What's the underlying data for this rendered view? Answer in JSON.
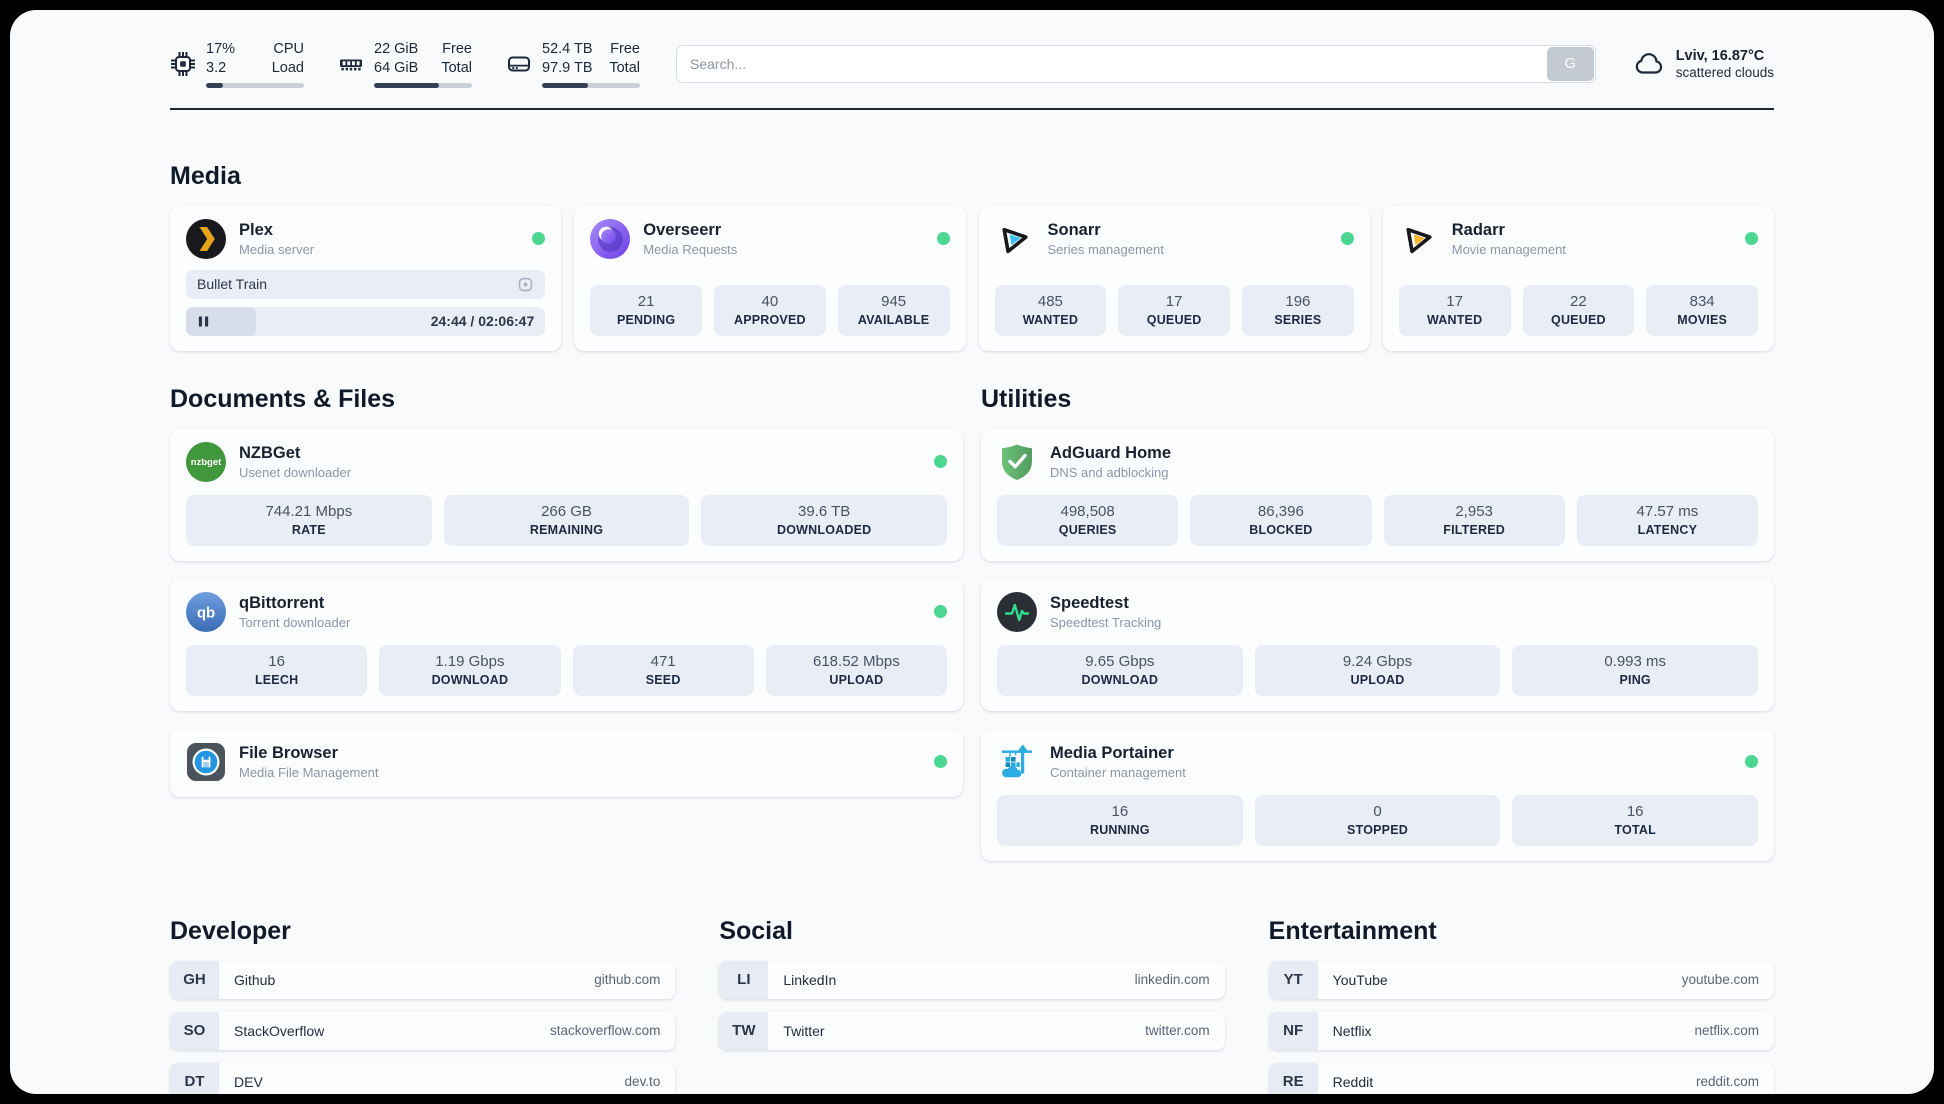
{
  "theme": {
    "accent_green": "#4cd791",
    "page_bg": "#f8fafc",
    "text_dark": "#1d2838",
    "box_bg": "#e9eef6"
  },
  "header": {
    "stats": [
      {
        "icon": "cpu-icon",
        "value_top": "17%",
        "value_bottom": "3.2",
        "label_top": "CPU",
        "label_bottom": "Load",
        "progress_pct": 17
      },
      {
        "icon": "ram-icon",
        "value_top": "22 GiB",
        "value_bottom": "64 GiB",
        "label_top": "Free",
        "label_bottom": "Total",
        "progress_pct": 66
      },
      {
        "icon": "disk-icon",
        "value_top": "52.4 TB",
        "value_bottom": "97.9 TB",
        "label_top": "Free",
        "label_bottom": "Total",
        "progress_pct": 47
      }
    ],
    "search": {
      "placeholder": "Search...",
      "button_label": "G"
    },
    "weather": {
      "icon": "cloud-icon",
      "location_temp": "Lviv, 16.87°C",
      "condition": "scattered clouds"
    }
  },
  "sections": {
    "media": {
      "title": "Media",
      "apps": [
        {
          "icon": "plex-icon",
          "name": "Plex",
          "subtitle": "Media server",
          "online": true,
          "now_playing": {
            "title": "Bullet Train",
            "time_display": "24:44 / 02:06:47",
            "progress_pct": 19.5
          }
        },
        {
          "icon": "overseerr-icon",
          "name": "Overseerr",
          "subtitle": "Media Requests",
          "online": true,
          "stats": [
            {
              "value": "21",
              "label": "PENDING"
            },
            {
              "value": "40",
              "label": "APPROVED"
            },
            {
              "value": "945",
              "label": "AVAILABLE"
            }
          ]
        },
        {
          "icon": "sonarr-icon",
          "name": "Sonarr",
          "subtitle": "Series management",
          "online": true,
          "stats": [
            {
              "value": "485",
              "label": "WANTED"
            },
            {
              "value": "17",
              "label": "QUEUED"
            },
            {
              "value": "196",
              "label": "SERIES"
            }
          ]
        },
        {
          "icon": "radarr-icon",
          "name": "Radarr",
          "subtitle": "Movie management",
          "online": true,
          "stats": [
            {
              "value": "17",
              "label": "WANTED"
            },
            {
              "value": "22",
              "label": "QUEUED"
            },
            {
              "value": "834",
              "label": "MOVIES"
            }
          ]
        }
      ]
    },
    "documents": {
      "title": "Documents & Files",
      "apps": [
        {
          "icon": "nzbget-icon",
          "name": "NZBGet",
          "subtitle": "Usenet downloader",
          "online": true,
          "stats": [
            {
              "value": "744.21 Mbps",
              "label": "RATE"
            },
            {
              "value": "266 GB",
              "label": "REMAINING"
            },
            {
              "value": "39.6 TB",
              "label": "DOWNLOADED"
            }
          ]
        },
        {
          "icon": "qbittorrent-icon",
          "name": "qBittorrent",
          "subtitle": "Torrent downloader",
          "online": true,
          "stats": [
            {
              "value": "16",
              "label": "LEECH"
            },
            {
              "value": "1.19 Gbps",
              "label": "DOWNLOAD"
            },
            {
              "value": "471",
              "label": "SEED"
            },
            {
              "value": "618.52 Mbps",
              "label": "UPLOAD"
            }
          ]
        },
        {
          "icon": "filebrowser-icon",
          "name": "File Browser",
          "subtitle": "Media File Management",
          "online": true
        }
      ]
    },
    "utilities": {
      "title": "Utilities",
      "apps": [
        {
          "icon": "adguard-icon",
          "name": "AdGuard Home",
          "subtitle": "DNS and adblocking",
          "online": false,
          "stats": [
            {
              "value": "498,508",
              "label": "QUERIES"
            },
            {
              "value": "86,396",
              "label": "BLOCKED"
            },
            {
              "value": "2,953",
              "label": "FILTERED"
            },
            {
              "value": "47.57 ms",
              "label": "LATENCY"
            }
          ]
        },
        {
          "icon": "speedtest-icon",
          "name": "Speedtest",
          "subtitle": "Speedtest Tracking",
          "online": false,
          "stats": [
            {
              "value": "9.65 Gbps",
              "label": "DOWNLOAD"
            },
            {
              "value": "9.24 Gbps",
              "label": "UPLOAD"
            },
            {
              "value": "0.993 ms",
              "label": "PING"
            }
          ]
        },
        {
          "icon": "portainer-icon",
          "name": "Media Portainer",
          "subtitle": "Container management",
          "online": true,
          "stats": [
            {
              "value": "16",
              "label": "RUNNING"
            },
            {
              "value": "0",
              "label": "STOPPED"
            },
            {
              "value": "16",
              "label": "TOTAL"
            }
          ]
        }
      ]
    }
  },
  "link_groups": [
    {
      "title": "Developer",
      "links": [
        {
          "abbr": "GH",
          "name": "Github",
          "url": "github.com"
        },
        {
          "abbr": "SO",
          "name": "StackOverflow",
          "url": "stackoverflow.com"
        },
        {
          "abbr": "DT",
          "name": "DEV",
          "url": "dev.to"
        }
      ]
    },
    {
      "title": "Social",
      "links": [
        {
          "abbr": "LI",
          "name": "LinkedIn",
          "url": "linkedin.com"
        },
        {
          "abbr": "TW",
          "name": "Twitter",
          "url": "twitter.com"
        }
      ]
    },
    {
      "title": "Entertainment",
      "links": [
        {
          "abbr": "YT",
          "name": "YouTube",
          "url": "youtube.com"
        },
        {
          "abbr": "NF",
          "name": "Netflix",
          "url": "netflix.com"
        },
        {
          "abbr": "RE",
          "name": "Reddit",
          "url": "reddit.com"
        }
      ]
    }
  ]
}
